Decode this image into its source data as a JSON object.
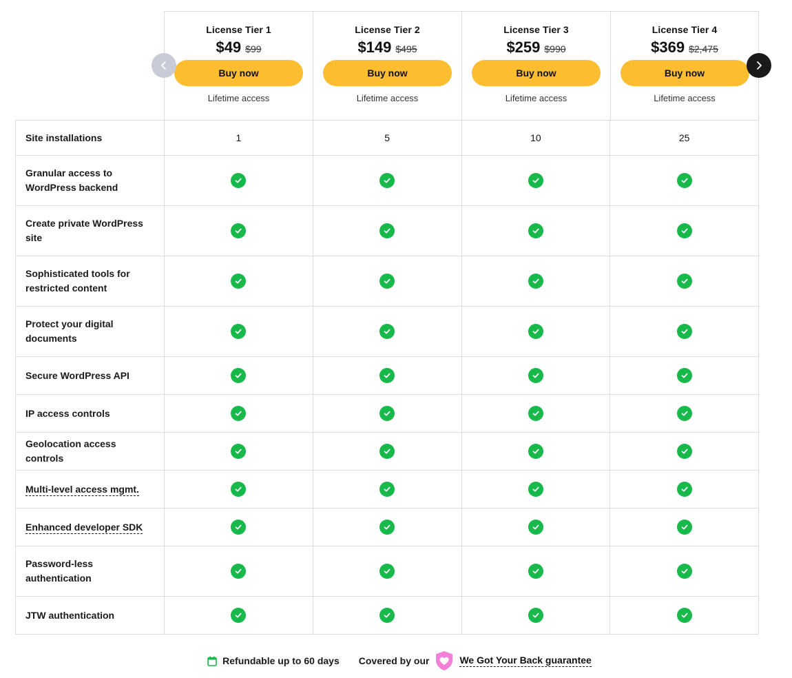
{
  "tiers": [
    {
      "name": "License Tier 1",
      "price": "$49",
      "was": "$99",
      "button": "Buy now",
      "note": "Lifetime access"
    },
    {
      "name": "License Tier 2",
      "price": "$149",
      "was": "$495",
      "button": "Buy now",
      "note": "Lifetime access"
    },
    {
      "name": "License Tier 3",
      "price": "$259",
      "was": "$990",
      "button": "Buy now",
      "note": "Lifetime access"
    },
    {
      "name": "License Tier 4",
      "price": "$369",
      "was": "$2,475",
      "button": "Buy now",
      "note": "Lifetime access"
    }
  ],
  "features": [
    {
      "label": "Site installations",
      "values": [
        "1",
        "5",
        "10",
        "25"
      ]
    },
    {
      "label": "Granular access to WordPress backend"
    },
    {
      "label": "Create private WordPress site"
    },
    {
      "label": "Sophisticated tools for restricted content"
    },
    {
      "label": "Protect your digital documents"
    },
    {
      "label": "Secure WordPress API"
    },
    {
      "label": "IP access controls"
    },
    {
      "label": "Geolocation access controls"
    },
    {
      "label": "Multi-level access mgmt."
    },
    {
      "label": "Enhanced developer SDK"
    },
    {
      "label": "Password-less authentication"
    },
    {
      "label": "JTW authentication"
    }
  ],
  "footer": {
    "refund": "Refundable up to 60 days",
    "covered": "Covered by our",
    "guarantee": "We Got Your Back guarantee"
  },
  "colors": {
    "button": "#fdbd31",
    "check": "#17b94a",
    "nav_prev": "#c7ccd6",
    "nav_next": "#1a1a1a",
    "shield": "#f47fd6"
  },
  "icons": {
    "check": "check-circle-icon",
    "prev": "chevron-left-icon",
    "next": "chevron-right-icon",
    "calendar": "calendar-icon",
    "shield": "shield-heart-icon"
  }
}
